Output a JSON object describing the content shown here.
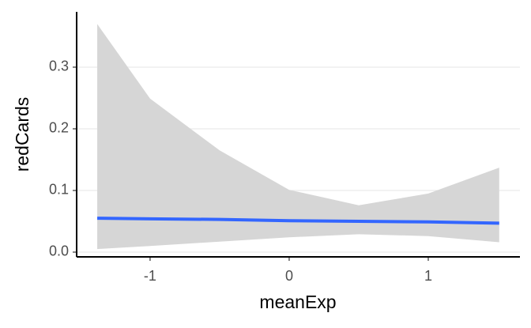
{
  "chart_data": {
    "type": "line",
    "x_label": "meanExp",
    "y_label": "redCards",
    "x": [
      -1.38,
      -1,
      -0.5,
      0,
      0.5,
      1,
      1.51
    ],
    "values": [
      0.055,
      0.054,
      0.053,
      0.051,
      0.05,
      0.049,
      0.047
    ],
    "lower": [
      0.005,
      0.01,
      0.017,
      0.024,
      0.029,
      0.026,
      0.016
    ],
    "upper": [
      0.37,
      0.249,
      0.165,
      0.101,
      0.076,
      0.095,
      0.137
    ],
    "color": "#3366ff",
    "ribbon_color": "#d6d6d6",
    "xlim": [
      -1.528,
      1.659
    ],
    "ylim": [
      -0.0077,
      0.3897
    ],
    "xticks": [
      -1,
      0,
      1
    ],
    "yticks": [
      {
        "value": 0,
        "label": "0.0"
      },
      0.1,
      0.2,
      0.3
    ],
    "grid": true
  }
}
